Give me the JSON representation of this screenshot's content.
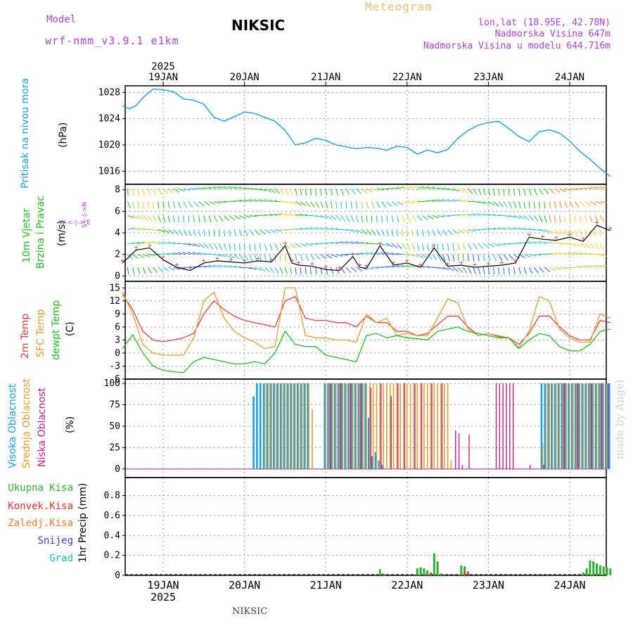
{
  "header": {
    "model_label": "Model",
    "model_name": "wrf-nmm_v3.9.1 e1km",
    "title": "Meteogram",
    "station": "NIKSIC",
    "coords": "lon,lat (18.95E, 42.78N)",
    "altitude": "Nadmorska Visina 647m",
    "model_altitude": "Nadmorska Visina u modelu 644.716m",
    "watermark": "made by Angel",
    "footer_station": "NIKSIC"
  },
  "colors": {
    "model": "#b040d8",
    "title": "#e8c070",
    "pressure": "#1aa0e8",
    "temp2m": "#e84040",
    "sfc": "#e0a030",
    "dew": "#20c020",
    "high_cloud": "#1aa0e8",
    "mid_cloud": "#e0a030",
    "low_cloud": "#c0208a",
    "total_precip": "#30b030",
    "conv_precip": "#e83030",
    "frz_precip": "#ff7830",
    "snow": "#4040d8",
    "hail": "#20c0c0"
  },
  "panel_labels": {
    "pressure": "Pritisak na nivou mora",
    "pressure_unit": "(hPa)",
    "wind1": "10m Vjetar",
    "wind2": "Brzina i Pravac",
    "wind_unit": "(m/s)",
    "compass1": "W <-|-> E",
    "compass2": "S<-|->N",
    "temp1": "2m Temp",
    "temp2": "SFC Temp",
    "temp3": "dewpt Temp",
    "temp_unit": "(C)",
    "cloud1": "Visoka Oblacnost",
    "cloud2": "Srednja Oblacnost",
    "cloud3": "Niska Oblacnost",
    "cloud_unit": "(%)",
    "precip_unit": "1hr Precip (mm)",
    "precip_legend": [
      "Ukupna Kisa",
      "Konvek.Kisa",
      "Zaledj.Kisa",
      "Snijeg",
      "Grad"
    ]
  },
  "chart_data": [
    {
      "type": "line",
      "panel": "pressure",
      "ylabel": "(hPa)",
      "ylim": [
        1014,
        1029
      ],
      "yticks": [
        1016,
        1020,
        1024,
        1028
      ],
      "grid": true,
      "x_unit": "hours since 19JAN 00",
      "x_date_top": [
        "2025",
        "19JAN",
        "20JAN",
        "21JAN",
        "22JAN",
        "23JAN",
        "24JAN"
      ],
      "x_date_bottom": [
        "19JAN",
        "2025",
        "20JAN",
        "21JAN",
        "22JAN",
        "23JAN",
        "24JAN"
      ],
      "series": [
        {
          "name": "Pritisak na nivou mora",
          "x": [
            -12,
            -10,
            -8,
            -6,
            -3,
            0,
            3,
            6,
            9,
            12,
            15,
            18,
            21,
            24,
            27,
            30,
            33,
            36,
            39,
            42,
            45,
            48,
            51,
            54,
            57,
            60,
            63,
            66,
            69,
            72,
            75,
            78,
            81,
            84,
            87,
            90,
            93,
            96,
            99,
            102,
            105,
            108,
            111,
            114,
            117,
            120,
            123,
            126,
            129,
            132
          ],
          "values": [
            1026,
            1025.5,
            1026,
            1027.2,
            1028.5,
            1028.4,
            1028.1,
            1027,
            1026.8,
            1026.2,
            1024.2,
            1023.6,
            1024.3,
            1025,
            1024.8,
            1024.2,
            1023.6,
            1022.2,
            1020,
            1020.3,
            1021,
            1020.7,
            1020,
            1019.7,
            1019.4,
            1019.6,
            1019.5,
            1019.2,
            1019.8,
            1019.6,
            1018.6,
            1019.2,
            1018.8,
            1019.3,
            1021,
            1022.2,
            1023,
            1023.4,
            1023.6,
            1022.5,
            1021.3,
            1020.5,
            1022,
            1022.3,
            1021.8,
            1020.6,
            1019,
            1017.8,
            1016.4,
            1015.2
          ]
        }
      ]
    },
    {
      "type": "line",
      "panel": "wind",
      "ylabel": "(m/s)",
      "ylim": [
        -0.5,
        8.5
      ],
      "yticks": [
        0,
        2,
        4,
        6,
        8
      ],
      "grid": true,
      "series": [
        {
          "name": "10m Vjetar",
          "x": [
            -12,
            -8,
            -4,
            0,
            4,
            8,
            12,
            16,
            20,
            24,
            28,
            32,
            36,
            38,
            40,
            44,
            48,
            52,
            56,
            58,
            60,
            64,
            68,
            72,
            76,
            80,
            84,
            88,
            92,
            96,
            100,
            104,
            108,
            112,
            116,
            120,
            124,
            128,
            132
          ],
          "values": [
            1.2,
            2.4,
            2.6,
            1.5,
            0.8,
            0.5,
            1.2,
            1.4,
            1.3,
            1.2,
            1.4,
            1.3,
            2.8,
            1.2,
            1.0,
            0.9,
            0.6,
            0.5,
            1.8,
            0.8,
            0.7,
            2.8,
            1.0,
            1.2,
            0.8,
            2.6,
            0.9,
            1.0,
            0.8,
            0.9,
            1.0,
            1.2,
            3.6,
            3.4,
            3.3,
            3.6,
            3.2,
            4.7,
            4.2
          ]
        }
      ]
    },
    {
      "type": "line",
      "panel": "temperature",
      "ylabel": "(C)",
      "ylim": [
        -6,
        16.5
      ],
      "yticks": [
        -6,
        -3,
        0,
        3,
        6,
        9,
        12,
        15
      ],
      "grid": true,
      "series": [
        {
          "name": "2m Temp",
          "x": [
            -12,
            -9,
            -6,
            -3,
            0,
            3,
            6,
            9,
            12,
            15,
            18,
            21,
            24,
            27,
            30,
            33,
            36,
            39,
            42,
            45,
            48,
            51,
            54,
            57,
            60,
            63,
            66,
            69,
            72,
            75,
            78,
            81,
            84,
            87,
            90,
            93,
            96,
            99,
            102,
            105,
            108,
            111,
            114,
            117,
            120,
            123,
            126,
            129,
            132
          ],
          "values": [
            13.5,
            10,
            5,
            3,
            2.6,
            3,
            3.5,
            4.5,
            9,
            12,
            10,
            8.5,
            7.5,
            7,
            6.5,
            6,
            12,
            13,
            8,
            7.5,
            7.5,
            7,
            7,
            6,
            8.5,
            7,
            7,
            5,
            5,
            4,
            4.5,
            6.5,
            8.5,
            8.5,
            6,
            4,
            4.5,
            3.8,
            3.5,
            2,
            4.5,
            8.5,
            8.5,
            6,
            4,
            3,
            3,
            7.5,
            7
          ]
        },
        {
          "name": "SFC Temp",
          "x": [
            -12,
            -9,
            -6,
            -3,
            0,
            3,
            6,
            9,
            12,
            15,
            18,
            21,
            24,
            27,
            30,
            33,
            36,
            39,
            42,
            45,
            48,
            51,
            54,
            57,
            60,
            63,
            66,
            69,
            72,
            75,
            78,
            81,
            84,
            87,
            90,
            93,
            96,
            99,
            102,
            105,
            108,
            111,
            114,
            117,
            120,
            123,
            126,
            129,
            132
          ],
          "values": [
            14,
            9,
            2,
            0,
            -0.5,
            -0.5,
            -0.5,
            3.5,
            12,
            14,
            8,
            5,
            3.5,
            2.5,
            1,
            1.5,
            15,
            15,
            4,
            3.5,
            3.5,
            3,
            3,
            2.5,
            9,
            7,
            8,
            4,
            4.5,
            4,
            4,
            8,
            12.5,
            11.5,
            5.5,
            4,
            4.5,
            4,
            3.5,
            1.2,
            5,
            13,
            12,
            5.5,
            3.5,
            2.5,
            2.5,
            9,
            8
          ]
        },
        {
          "name": "dewpt Temp",
          "x": [
            -12,
            -9,
            -6,
            -3,
            0,
            3,
            6,
            9,
            12,
            15,
            18,
            21,
            24,
            27,
            30,
            33,
            36,
            39,
            42,
            45,
            48,
            51,
            54,
            57,
            60,
            63,
            66,
            69,
            72,
            75,
            78,
            81,
            84,
            87,
            90,
            93,
            96,
            99,
            102,
            105,
            108,
            111,
            114,
            117,
            120,
            123,
            126,
            129,
            132
          ],
          "values": [
            1,
            4.2,
            0,
            -3,
            -4,
            -4.3,
            -4.5,
            -2,
            -1,
            -1.5,
            -2,
            -2.5,
            -2.5,
            -2,
            -2.5,
            0,
            5,
            2,
            1.5,
            1.5,
            -0.5,
            -1,
            -1.5,
            -2,
            4,
            4.5,
            3.5,
            4,
            3.5,
            3.3,
            3,
            5,
            5.5,
            6,
            5,
            4.5,
            4,
            3.5,
            3.5,
            1,
            3,
            4.5,
            4,
            1.5,
            0.5,
            0.5,
            2,
            5,
            5.5
          ]
        }
      ]
    },
    {
      "type": "bar",
      "panel": "cloud",
      "ylabel": "(%)",
      "ylim": [
        -10,
        105
      ],
      "yticks": [
        0,
        25,
        50,
        75,
        100
      ],
      "grid": true,
      "series": [
        {
          "name": "Visoka Oblacnost",
          "x": [
            27,
            28,
            29,
            30,
            31,
            32,
            33,
            34,
            35,
            36,
            37,
            38,
            39,
            40,
            41,
            42,
            43,
            48,
            49,
            50,
            51,
            52,
            53,
            54,
            55,
            56,
            57,
            58,
            59,
            60,
            61,
            62,
            63,
            64,
            65,
            112,
            113,
            114,
            115,
            116,
            117,
            118,
            119,
            120,
            121,
            122,
            123,
            124,
            125,
            126,
            127,
            128,
            129,
            130,
            131,
            132
          ],
          "values": [
            85,
            100,
            100,
            100,
            100,
            100,
            100,
            100,
            100,
            100,
            100,
            100,
            100,
            100,
            100,
            100,
            100,
            100,
            100,
            100,
            100,
            100,
            100,
            100,
            100,
            100,
            100,
            100,
            100,
            100,
            60,
            15,
            20,
            10,
            5,
            100,
            100,
            100,
            100,
            100,
            100,
            100,
            100,
            100,
            100,
            100,
            100,
            100,
            100,
            100,
            100,
            100,
            100,
            100,
            100,
            100
          ]
        },
        {
          "name": "Srednja Oblacnost",
          "x": [
            30,
            31,
            32,
            33,
            34,
            35,
            36,
            37,
            38,
            39,
            40,
            41,
            42,
            43,
            44,
            48,
            49,
            50,
            51,
            52,
            53,
            54,
            55,
            56,
            57,
            58,
            59,
            60,
            61,
            62,
            63,
            64,
            65,
            66,
            67,
            68,
            69,
            70,
            71,
            72,
            73,
            74,
            75,
            76,
            77,
            78,
            79,
            80,
            81,
            82,
            83,
            84,
            85,
            112,
            113,
            114,
            115,
            116,
            117,
            118,
            119,
            120,
            121,
            122,
            123,
            124,
            125,
            126,
            127,
            128,
            129,
            130,
            131
          ],
          "values": [
            100,
            100,
            100,
            100,
            100,
            100,
            100,
            100,
            100,
            100,
            100,
            100,
            100,
            100,
            70,
            100,
            100,
            100,
            100,
            100,
            100,
            100,
            100,
            100,
            100,
            100,
            100,
            100,
            100,
            100,
            100,
            100,
            100,
            100,
            100,
            100,
            100,
            100,
            100,
            100,
            100,
            100,
            100,
            100,
            100,
            100,
            100,
            100,
            100,
            100,
            100,
            100,
            10,
            30,
            100,
            100,
            100,
            100,
            100,
            100,
            100,
            100,
            100,
            100,
            100,
            100,
            100,
            100,
            100,
            100,
            100,
            100,
            100
          ]
        },
        {
          "name": "Niska Oblacnost",
          "x": [
            49,
            52,
            55,
            58,
            61,
            64,
            67,
            69,
            71,
            74,
            76,
            79,
            82,
            86,
            87,
            88,
            90,
            98,
            99,
            100,
            101,
            102,
            103,
            108,
            112,
            118,
            122,
            126,
            129,
            131
          ],
          "values": [
            100,
            100,
            100,
            100,
            95,
            100,
            85,
            100,
            100,
            100,
            100,
            100,
            100,
            45,
            42,
            5,
            40,
            100,
            100,
            100,
            100,
            100,
            100,
            5,
            5,
            100,
            100,
            100,
            100,
            100
          ]
        }
      ]
    },
    {
      "type": "bar",
      "panel": "precip",
      "ylabel": "1hr Precip (mm)",
      "ylim": [
        0,
        0.98
      ],
      "yticks": [
        0,
        0.2,
        0.4,
        0.6,
        0.8
      ],
      "grid": true,
      "series": [
        {
          "name": "Ukupna Kisa",
          "x": [
            64,
            65,
            75,
            76,
            77,
            78,
            79,
            80,
            81,
            82,
            88,
            89,
            90,
            124,
            125,
            126,
            127,
            128,
            129,
            130,
            131,
            132
          ],
          "values": [
            0.06,
            0.02,
            0.07,
            0.08,
            0.07,
            0.05,
            0.03,
            0.22,
            0.14,
            0.02,
            0.1,
            0.09,
            0.04,
            0.03,
            0.07,
            0.15,
            0.14,
            0.12,
            0.1,
            0.09,
            0.08,
            0.07
          ]
        },
        {
          "name": "Konvek.Kisa",
          "x": [
            79,
            89,
            90
          ],
          "values": [
            0.02,
            0.03,
            0.02
          ]
        },
        {
          "name": "Zaledj.Kisa",
          "x": [],
          "values": []
        },
        {
          "name": "Snijeg",
          "x": [],
          "values": []
        },
        {
          "name": "Grad",
          "x": [],
          "values": []
        }
      ]
    }
  ]
}
